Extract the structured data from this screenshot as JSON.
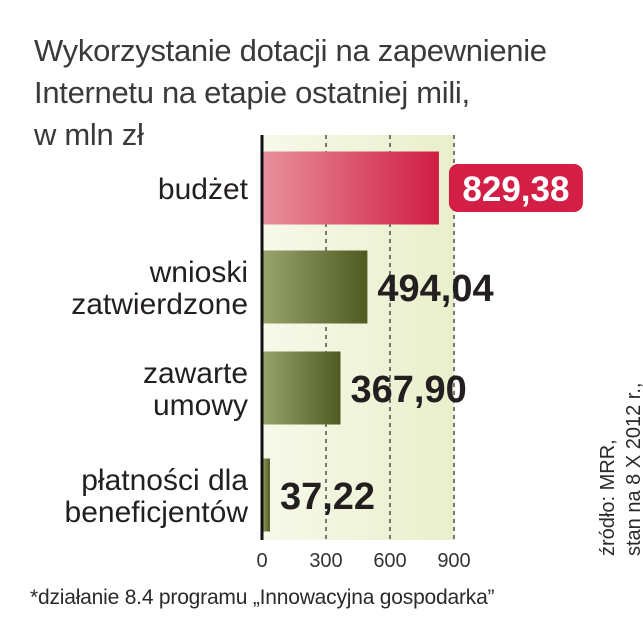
{
  "title": "Wykorzystanie dotacji na zapewnienie Internetu na etapie ostatniej mili,",
  "unit": "w mln zł",
  "footnote": "*działanie 8.4 programu „Innowacyjna gospodarka”",
  "source": {
    "line1": "źródło: MRR,",
    "line2": "stan na 8 X 2012 r.,"
  },
  "colors": {
    "highlight": "#d31f46",
    "bar_red": "#d42f4f",
    "bar_olive": "#5e6b2c",
    "background_band": "#eef3d6"
  },
  "chart_data": {
    "type": "bar",
    "orientation": "horizontal",
    "categories": [
      [
        "budżet"
      ],
      [
        "wnioski",
        "zatwierdzone"
      ],
      [
        "zawarte",
        "umowy"
      ],
      [
        "płatności dla",
        "beneficjentów"
      ]
    ],
    "values": [
      829.38,
      494.04,
      367.9,
      37.22
    ],
    "value_labels": [
      "829,38",
      "494,04",
      "367,90",
      "37,22"
    ],
    "xlim": [
      0,
      900
    ],
    "xticks": [
      0,
      300,
      600,
      900
    ],
    "grid": "dashed vertical at 300, 600, 900",
    "highlighted_index": 0
  }
}
